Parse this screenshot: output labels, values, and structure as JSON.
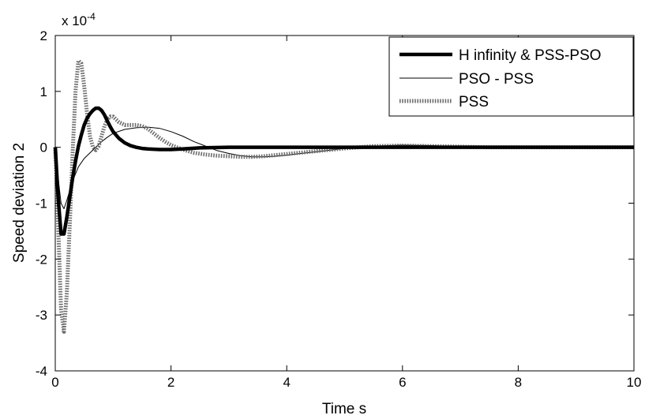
{
  "chart_data": {
    "type": "line",
    "title": "",
    "xlabel": "Time s",
    "ylabel": "Speed deviation 2",
    "y_multiplier_label": "x 10",
    "y_multiplier_exponent": "-4",
    "xlim": [
      0,
      10
    ],
    "ylim": [
      -4,
      2
    ],
    "xticks": [
      0,
      2,
      4,
      6,
      8,
      10
    ],
    "yticks": [
      -4,
      -3,
      -2,
      -1,
      0,
      1,
      2
    ],
    "grid": false,
    "legend_position": "top-right",
    "series": [
      {
        "name": "H infinity & PSS-PSO",
        "style": "thick-solid",
        "color": "#000000",
        "x": [
          0,
          0.05,
          0.1,
          0.15,
          0.2,
          0.25,
          0.3,
          0.35,
          0.4,
          0.45,
          0.5,
          0.55,
          0.6,
          0.65,
          0.7,
          0.75,
          0.8,
          0.85,
          0.9,
          0.95,
          1.0,
          1.1,
          1.2,
          1.3,
          1.4,
          1.5,
          1.6,
          1.8,
          2.0,
          2.2,
          2.5,
          3.0,
          3.5,
          4.0,
          5.0,
          6.0,
          7.0,
          8.0,
          9.0,
          10.0
        ],
        "y": [
          0,
          -0.9,
          -1.55,
          -1.55,
          -1.25,
          -0.9,
          -0.55,
          -0.25,
          0.02,
          0.22,
          0.4,
          0.52,
          0.6,
          0.66,
          0.7,
          0.7,
          0.66,
          0.58,
          0.47,
          0.37,
          0.28,
          0.16,
          0.08,
          0.03,
          0.0,
          -0.02,
          -0.03,
          -0.04,
          -0.04,
          -0.03,
          -0.01,
          0.0,
          0.0,
          0.0,
          0.0,
          0.0,
          0.0,
          0.0,
          0.0,
          0.0
        ]
      },
      {
        "name": "PSO - PSS",
        "style": "thin-solid",
        "color": "#000000",
        "x": [
          0,
          0.05,
          0.1,
          0.15,
          0.2,
          0.3,
          0.4,
          0.5,
          0.6,
          0.7,
          0.8,
          0.9,
          1.0,
          1.2,
          1.4,
          1.6,
          1.8,
          2.0,
          2.2,
          2.4,
          2.6,
          2.8,
          3.0,
          3.2,
          3.4,
          3.6,
          3.8,
          4.0,
          4.5,
          5.0,
          5.5,
          6.0,
          6.5,
          7.0,
          7.5,
          8.0,
          9.0,
          10.0
        ],
        "y": [
          0,
          -0.55,
          -1.0,
          -1.1,
          -0.95,
          -0.6,
          -0.35,
          -0.2,
          -0.1,
          0.0,
          0.1,
          0.18,
          0.25,
          0.32,
          0.35,
          0.36,
          0.34,
          0.28,
          0.2,
          0.1,
          0.02,
          -0.06,
          -0.11,
          -0.15,
          -0.17,
          -0.17,
          -0.16,
          -0.14,
          -0.08,
          -0.02,
          0.02,
          0.04,
          0.03,
          0.01,
          0.0,
          0.0,
          0.0,
          0.0
        ]
      },
      {
        "name": "PSS",
        "style": "dotted",
        "color": "#6e6e6e",
        "x": [
          0,
          0.05,
          0.1,
          0.15,
          0.2,
          0.25,
          0.3,
          0.35,
          0.4,
          0.45,
          0.5,
          0.55,
          0.6,
          0.65,
          0.7,
          0.75,
          0.8,
          0.85,
          0.9,
          0.95,
          1.0,
          1.05,
          1.1,
          1.2,
          1.3,
          1.4,
          1.5,
          1.6,
          1.7,
          1.8,
          1.9,
          2.0,
          2.2,
          2.4,
          2.6,
          2.8,
          3.0,
          3.2,
          3.4,
          3.6,
          3.8,
          4.0,
          4.5,
          5.0,
          5.5,
          6.0,
          6.5,
          7.0,
          7.5,
          8.0,
          9.0,
          10.0
        ],
        "y": [
          0,
          -1.4,
          -2.9,
          -3.3,
          -2.6,
          -1.4,
          -0.1,
          1.0,
          1.55,
          1.5,
          1.1,
          0.6,
          0.2,
          0.0,
          -0.05,
          0.02,
          0.2,
          0.38,
          0.5,
          0.55,
          0.55,
          0.5,
          0.45,
          0.4,
          0.4,
          0.4,
          0.38,
          0.33,
          0.25,
          0.17,
          0.1,
          0.04,
          -0.04,
          -0.1,
          -0.13,
          -0.15,
          -0.16,
          -0.17,
          -0.17,
          -0.16,
          -0.14,
          -0.12,
          -0.07,
          -0.02,
          0.02,
          0.03,
          0.02,
          0.01,
          0.0,
          0.0,
          0.0,
          0.0
        ]
      }
    ]
  }
}
